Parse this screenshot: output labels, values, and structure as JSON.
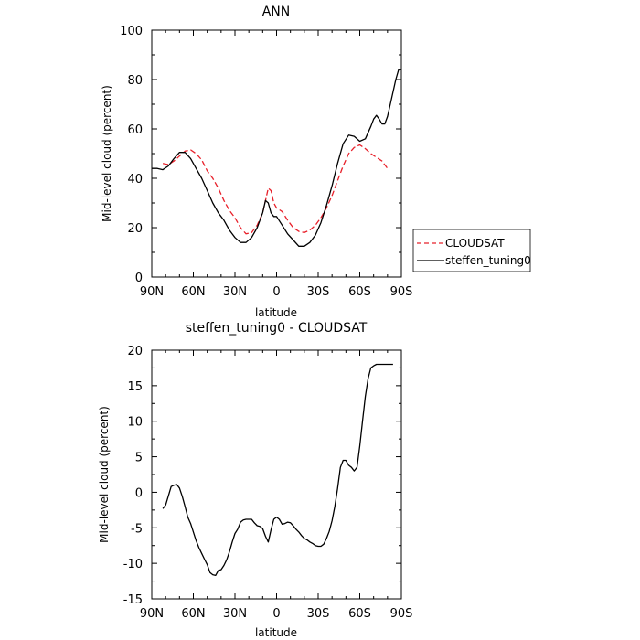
{
  "chart_data": [
    {
      "type": "line",
      "title": "ANN",
      "xlabel": "latitude",
      "ylabel": "Mid-level cloud (percent)",
      "xlim": [
        -90,
        90
      ],
      "ylim": [
        0,
        100
      ],
      "xticks": [
        -90,
        -60,
        -30,
        0,
        30,
        60,
        90
      ],
      "xtick_labels": [
        "90N",
        "60N",
        "30N",
        "0",
        "30S",
        "60S",
        "90S"
      ],
      "yticks": [
        0,
        20,
        40,
        60,
        80,
        100
      ],
      "ytick_labels": [
        "0",
        "20",
        "40",
        "60",
        "80",
        "100"
      ],
      "legend_position": "right-outside",
      "series": [
        {
          "name": "CLOUDSAT",
          "color": "#e8202a",
          "dash": "dashed",
          "x": [
            -82,
            -78,
            -74,
            -70,
            -66,
            -62,
            -58,
            -54,
            -50,
            -46,
            -42,
            -38,
            -34,
            -30,
            -26,
            -22,
            -18,
            -14,
            -10,
            -8,
            -6,
            -4,
            -2,
            0,
            4,
            8,
            12,
            16,
            20,
            24,
            28,
            32,
            36,
            40,
            44,
            48,
            52,
            56,
            60,
            64,
            68,
            72,
            76,
            80
          ],
          "y": [
            46,
            45.5,
            47,
            49,
            51,
            51.5,
            50,
            47.5,
            43,
            40,
            36,
            31,
            27,
            24,
            20,
            17.5,
            18,
            21,
            26,
            31,
            36,
            35,
            30,
            28,
            26.5,
            23,
            20,
            18.5,
            18,
            19,
            21,
            24,
            28,
            33,
            39,
            45,
            50,
            52.5,
            53.5,
            52,
            50,
            48.5,
            47,
            44
          ]
        },
        {
          "name": "steffen_tuning0",
          "color": "#000000",
          "dash": "solid",
          "x": [
            -90,
            -86,
            -82,
            -78,
            -74,
            -70,
            -66,
            -62,
            -58,
            -54,
            -50,
            -46,
            -42,
            -38,
            -34,
            -30,
            -26,
            -22,
            -18,
            -14,
            -10,
            -8,
            -6,
            -4,
            -2,
            0,
            4,
            8,
            12,
            16,
            20,
            24,
            28,
            32,
            36,
            40,
            44,
            48,
            52,
            56,
            60,
            64,
            68,
            70,
            72,
            74,
            76,
            78,
            80,
            82,
            84,
            86,
            88,
            90
          ],
          "y": [
            44,
            44,
            43.5,
            45,
            48,
            50.5,
            50.5,
            48,
            44,
            40,
            35,
            30,
            26,
            23,
            19,
            16,
            14,
            14,
            16,
            20,
            26,
            31,
            30,
            26,
            24.5,
            24.5,
            21,
            17.5,
            15,
            12.5,
            12.5,
            14,
            17,
            22,
            29,
            37,
            46,
            54,
            57.5,
            57,
            55,
            56,
            61,
            64,
            65.5,
            64,
            62,
            62,
            65,
            70,
            75,
            80,
            84,
            84
          ]
        }
      ]
    },
    {
      "type": "line",
      "title": "steffen_tuning0 - CLOUDSAT",
      "xlabel": "latitude",
      "ylabel": "Mid-level cloud (percent)",
      "xlim": [
        -90,
        90
      ],
      "ylim": [
        -15,
        20
      ],
      "xticks": [
        -90,
        -60,
        -30,
        0,
        30,
        60,
        90
      ],
      "xtick_labels": [
        "90N",
        "60N",
        "30N",
        "0",
        "30S",
        "60S",
        "90S"
      ],
      "yticks": [
        -15,
        -10,
        -5,
        0,
        5,
        10,
        15,
        20
      ],
      "ytick_labels": [
        "-15",
        "-10",
        "-5",
        "0",
        "5",
        "10",
        "15",
        "20"
      ],
      "series": [
        {
          "color": "#000000",
          "dash": "solid",
          "x": [
            -82,
            -80,
            -78,
            -76,
            -74,
            -72,
            -70,
            -68,
            -66,
            -64,
            -62,
            -60,
            -58,
            -56,
            -54,
            -52,
            -50,
            -48,
            -46,
            -44,
            -42,
            -40,
            -38,
            -36,
            -34,
            -32,
            -30,
            -28,
            -26,
            -24,
            -22,
            -20,
            -18,
            -16,
            -14,
            -12,
            -10,
            -8,
            -6,
            -4,
            -2,
            0,
            2,
            4,
            6,
            8,
            10,
            12,
            14,
            16,
            18,
            20,
            22,
            24,
            26,
            28,
            30,
            32,
            34,
            36,
            38,
            40,
            42,
            44,
            46,
            48,
            50,
            52,
            54,
            56,
            58,
            60,
            62,
            64,
            66,
            68,
            70,
            72,
            74,
            76,
            78,
            80,
            82,
            84
          ],
          "y": [
            -2.3,
            -1.8,
            -0.5,
            0.8,
            1.0,
            1.1,
            0.6,
            -0.6,
            -2.0,
            -3.5,
            -4.4,
            -5.6,
            -6.8,
            -7.8,
            -8.6,
            -9.4,
            -10.2,
            -11.3,
            -11.6,
            -11.7,
            -11.0,
            -10.9,
            -10.3,
            -9.5,
            -8.4,
            -7.0,
            -5.8,
            -5.2,
            -4.2,
            -3.9,
            -3.8,
            -3.8,
            -3.8,
            -4.3,
            -4.7,
            -4.8,
            -5.1,
            -6.2,
            -7.0,
            -5.3,
            -3.8,
            -3.5,
            -3.8,
            -4.5,
            -4.4,
            -4.2,
            -4.3,
            -4.7,
            -5.2,
            -5.6,
            -6.1,
            -6.5,
            -6.7,
            -7.0,
            -7.2,
            -7.5,
            -7.6,
            -7.6,
            -7.3,
            -6.5,
            -5.5,
            -4.0,
            -2.0,
            0.5,
            3.5,
            4.5,
            4.5,
            3.8,
            3.5,
            3.0,
            3.5,
            6.5,
            10.0,
            13.5,
            16.0,
            17.5,
            17.8,
            18.0,
            18.0,
            18.0,
            18.0,
            18.0,
            18.0,
            18.0
          ]
        }
      ]
    }
  ]
}
